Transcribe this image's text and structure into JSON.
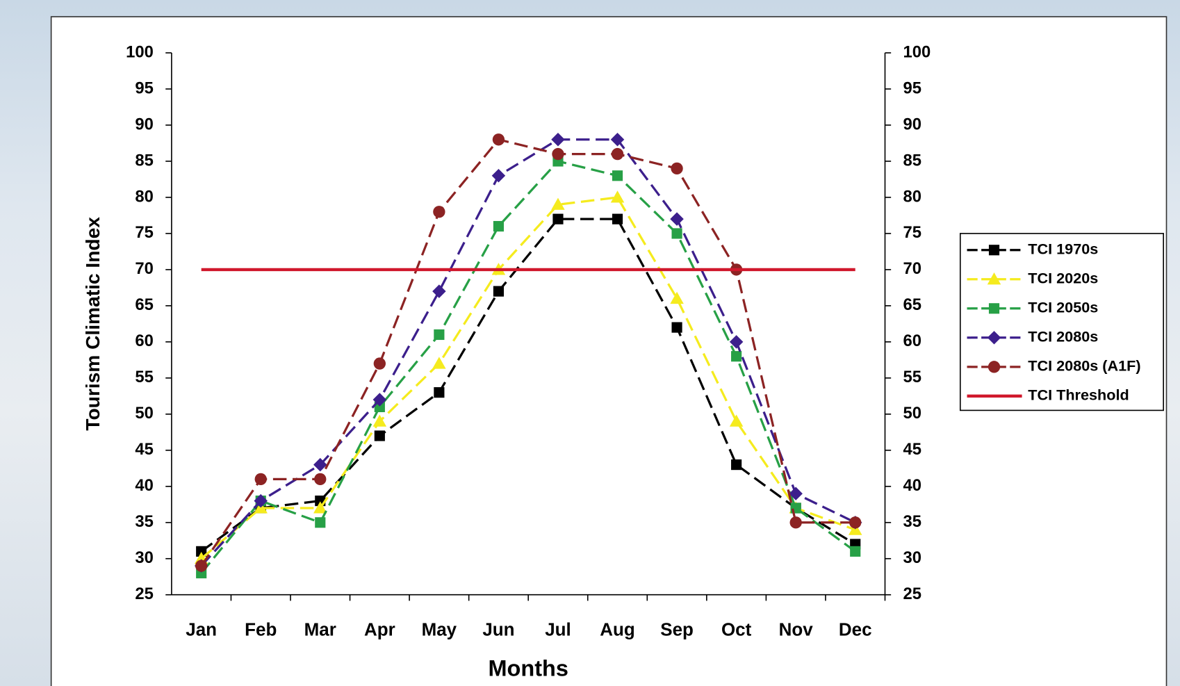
{
  "chart_data": {
    "type": "line",
    "y_label": "Tourism Climatic Index",
    "x_label": "Months",
    "categories": [
      "Jan",
      "Feb",
      "Mar",
      "Apr",
      "May",
      "Jun",
      "Jul",
      "Aug",
      "Sep",
      "Oct",
      "Nov",
      "Dec"
    ],
    "series": [
      {
        "name": "TCI 1970s",
        "color": "#000000",
        "marker": "square",
        "dashed": true,
        "values": [
          31,
          37,
          38,
          47,
          53,
          67,
          77,
          77,
          62,
          43,
          37,
          32
        ]
      },
      {
        "name": "TCI 2020s",
        "color": "#f5eb1e",
        "marker": "triangle",
        "dashed": true,
        "values": [
          30,
          37,
          37,
          49,
          57,
          70,
          79,
          80,
          66,
          49,
          37,
          34
        ]
      },
      {
        "name": "TCI 2050s",
        "color": "#27a046",
        "marker": "square",
        "dashed": true,
        "values": [
          28,
          38,
          35,
          51,
          61,
          76,
          85,
          83,
          75,
          58,
          37,
          31
        ]
      },
      {
        "name": "TCI 2080s",
        "color": "#3c1f8c",
        "marker": "diamond",
        "dashed": true,
        "values": [
          29,
          38,
          43,
          52,
          67,
          83,
          88,
          88,
          77,
          60,
          39,
          35
        ]
      },
      {
        "name": "TCI 2080s (A1F)",
        "color": "#8c2323",
        "marker": "circle",
        "dashed": true,
        "values": [
          29,
          41,
          41,
          57,
          78,
          88,
          86,
          86,
          84,
          70,
          35,
          35
        ]
      },
      {
        "name": "TCI Threshold",
        "color": "#d0182c",
        "marker": "none",
        "dashed": false,
        "values": [
          70,
          70,
          70,
          70,
          70,
          70,
          70,
          70,
          70,
          70,
          70,
          70
        ]
      }
    ],
    "ylim": [
      25,
      100
    ],
    "yticks": [
      25,
      30,
      35,
      40,
      45,
      50,
      55,
      60,
      65,
      70,
      75,
      80,
      85,
      90,
      95,
      100
    ],
    "y2lim": [
      25,
      100
    ],
    "y2ticks": [
      25,
      30,
      35,
      40,
      45,
      50,
      55,
      60,
      65,
      70,
      75,
      80,
      85,
      90,
      95,
      100
    ],
    "legend": "right"
  }
}
